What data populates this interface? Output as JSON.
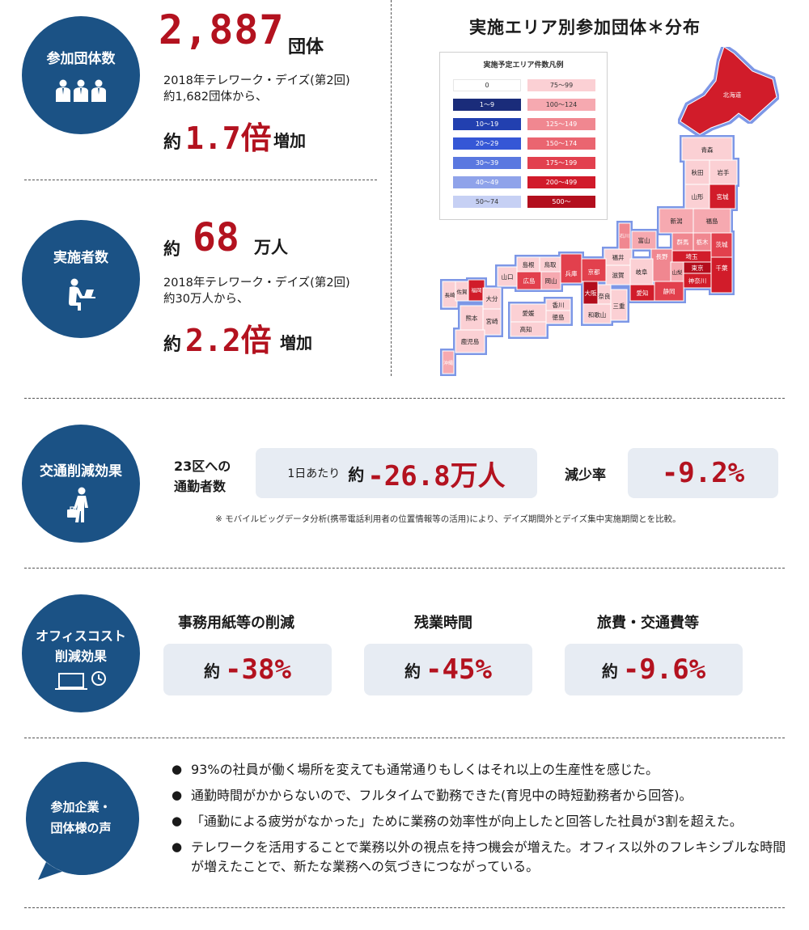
{
  "participants": {
    "label": "参加団体数",
    "number": "2,887",
    "unit": "団体",
    "desc_line1": "2018年テレワーク・デイズ(第2回)",
    "desc_line2": "約1,682団体から、",
    "approx": "約",
    "ratio": "1.7倍",
    "increase": "増加"
  },
  "implementers": {
    "label": "実施者数",
    "approx": "約",
    "number": "68",
    "unit": "万人",
    "desc_line1": "2018年テレワーク・デイズ(第2回)",
    "desc_line2": "約30万人から、",
    "ratio_approx": "約",
    "ratio": "2.2倍",
    "increase": "増加"
  },
  "map": {
    "title": "実施エリア別参加団体＊分布",
    "legend_title": "実施予定エリア件数凡例",
    "legend_left": [
      {
        "label": "0",
        "color": "#ffffff",
        "text_color": "#333333"
      },
      {
        "label": "1〜9",
        "color": "#1a2c7a",
        "text_color": "#ffffff"
      },
      {
        "label": "10〜19",
        "color": "#2240b0",
        "text_color": "#ffffff"
      },
      {
        "label": "20〜29",
        "color": "#3557d6",
        "text_color": "#ffffff"
      },
      {
        "label": "30〜39",
        "color": "#5a78e0",
        "text_color": "#ffffff"
      },
      {
        "label": "40〜49",
        "color": "#8fa3ea",
        "text_color": "#ffffff"
      },
      {
        "label": "50〜74",
        "color": "#c6d0f4",
        "text_color": "#333333"
      }
    ],
    "legend_right": [
      {
        "label": "75〜99",
        "color": "#fbd0d4",
        "text_color": "#333333"
      },
      {
        "label": "100〜124",
        "color": "#f6a9b0",
        "text_color": "#333333"
      },
      {
        "label": "125〜149",
        "color": "#f08790",
        "text_color": "#ffffff"
      },
      {
        "label": "150〜174",
        "color": "#ea6570",
        "text_color": "#ffffff"
      },
      {
        "label": "175〜199",
        "color": "#e2404e",
        "text_color": "#ffffff"
      },
      {
        "label": "200〜499",
        "color": "#d11a2a",
        "text_color": "#ffffff"
      },
      {
        "label": "500〜",
        "color": "#b30f1e",
        "text_color": "#ffffff"
      }
    ],
    "prefectures": {
      "hokkaido": "北海道",
      "aomori": "青森",
      "akita": "秋田",
      "iwate": "岩手",
      "yamagata": "山形",
      "miyagi": "宮城",
      "niigata": "新潟",
      "fukushima": "福島",
      "ishikawa": "石川",
      "toyama": "富山",
      "gunma": "群馬",
      "tochigi": "栃木",
      "ibaraki": "茨城",
      "nagano": "長野",
      "saitama": "埼玉",
      "fukui": "福井",
      "gifu": "岐阜",
      "yamanashi": "山梨",
      "tokyo": "東京",
      "chiba": "千葉",
      "kanagawa": "神奈川",
      "shimane": "島根",
      "tottori": "鳥取",
      "hyogo": "兵庫",
      "kyoto": "京都",
      "shiga": "滋賀",
      "yamaguchi": "山口",
      "hiroshima": "広島",
      "okayama": "岡山",
      "osaka": "大阪",
      "nara": "奈良",
      "aichi": "愛知",
      "shizuoka": "静岡",
      "mie": "三重",
      "wakayama": "和歌山",
      "nagasaki": "長崎",
      "saga": "佐賀",
      "fukuoka": "福岡",
      "oita": "大分",
      "kumamoto": "熊本",
      "miyazaki": "宮崎",
      "kagoshima": "鹿児島",
      "ehime": "愛媛",
      "kagawa": "香川",
      "tokushima": "徳島",
      "kochi": "高知",
      "okinawa": "沖縄"
    }
  },
  "traffic": {
    "label": "交通削減効果",
    "commuters_line1": "23区への",
    "commuters_line2": "通勤者数",
    "per_day": "1日あたり",
    "approx": "約",
    "value": "-26.8万人",
    "rate_label": "減少率",
    "rate_value": "-9.2%",
    "note": "※ モバイルビッグデータ分析(携帯電話利用者の位置情報等の活用)により、デイズ期間外とデイズ集中実施期間とを比較。"
  },
  "office": {
    "label_line1": "オフィスコスト",
    "label_line2": "削減効果",
    "items": [
      {
        "title": "事務用紙等の削減",
        "approx": "約",
        "value": "-38%"
      },
      {
        "title": "残業時間",
        "approx": "約",
        "value": "-45%"
      },
      {
        "title": "旅費・交通費等",
        "approx": "約",
        "value": "-9.6%"
      }
    ]
  },
  "voices": {
    "label_line1": "参加企業・",
    "label_line2": "団体様の声",
    "items": [
      "93%の社員が働く場所を変えても通常通りもしくはそれ以上の生産性を感じた。",
      "通勤時間がかからないので、フルタイムで勤務できた(育児中の時短勤務者から回答)。",
      "「通勤による疲労がなかった」ために業務の効率性が向上したと回答した社員が3割を超えた。",
      "テレワークを活用することで業務以外の視点を持つ機会が増えた。オフィス以外のフレキシブルな時間が増えたことで、新たな業務への気づきにつながっている。"
    ]
  }
}
